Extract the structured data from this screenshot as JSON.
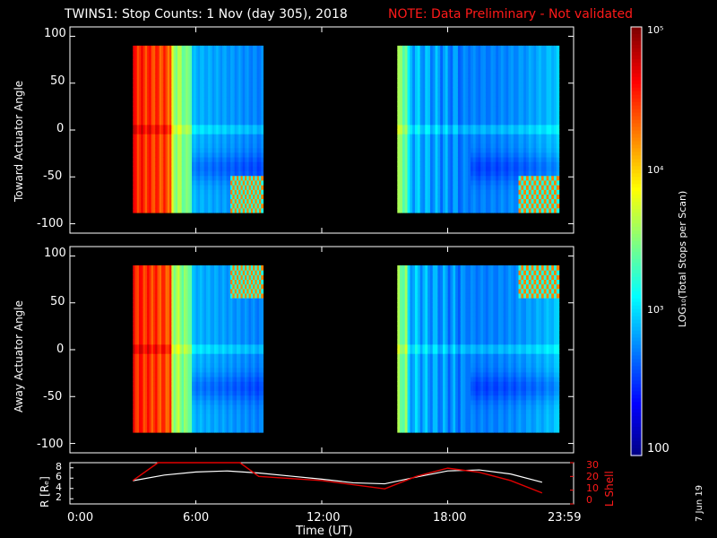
{
  "title_main": "TWINS1: Stop Counts:  1 Nov (day 305), 2018",
  "title_note": "NOTE: Data Preliminary - Not validated",
  "panel1_ylabel": "Toward Actuator Angle",
  "panel2_ylabel": "Away Actuator Angle",
  "panel3_ylabel": "R [Rₑ]",
  "panel3_ylabel2": "L Shell",
  "x_label": "Time (UT)",
  "colorbar_label": "LOG₁₀(Total Stops per Scan)",
  "colorbar_ticks": [
    "10⁵",
    "10⁴",
    "10³",
    "100"
  ],
  "date_stamp": "7 Jun 19",
  "colors": {
    "background": "#000000",
    "note": "#ff1a1a",
    "r_line": "#ffffff",
    "l_line": "#e00000"
  },
  "chart_data": [
    {
      "type": "heatmap",
      "title": "TWINS1: Stop Counts:  1 Nov (day 305), 2018",
      "ylabel": "Toward Actuator Angle",
      "xlim_hours": [
        0,
        24
      ],
      "ylim": [
        -110,
        110
      ],
      "yticks": [
        "100",
        "50",
        "0",
        "-50",
        "-100"
      ],
      "data_intervals_hours": [
        [
          3,
          9.2
        ],
        [
          15.6,
          23.3
        ]
      ],
      "angle_range": [
        -88,
        90
      ],
      "color_scale": "log10",
      "zlim": [
        100,
        100000
      ]
    },
    {
      "type": "heatmap",
      "ylabel": "Away Actuator Angle",
      "xlim_hours": [
        0,
        24
      ],
      "ylim": [
        -110,
        110
      ],
      "yticks": [
        "100",
        "50",
        "0",
        "-50",
        "-100"
      ],
      "data_intervals_hours": [
        [
          3,
          9.2
        ],
        [
          15.6,
          23.3
        ]
      ],
      "angle_range": [
        -88,
        90
      ],
      "color_scale": "log10",
      "zlim": [
        100,
        100000
      ]
    },
    {
      "type": "line",
      "xlabel": "Time (UT)",
      "xticks": [
        "0:00",
        "6:00",
        "12:00",
        "18:00",
        "23:59"
      ],
      "xlim_hours": [
        0,
        24
      ],
      "ylabel_left": "R [Rₑ]",
      "ylim_left": [
        1,
        9
      ],
      "yticks_left": [
        "8",
        "6",
        "4",
        "2"
      ],
      "ylabel_right": "L Shell",
      "ylim_right": [
        0,
        30
      ],
      "yticks_right": [
        "30",
        "20",
        "10",
        "0"
      ],
      "series": [
        {
          "name": "R [Rₑ]",
          "x": [
            3,
            4.5,
            6,
            7.5,
            9,
            10.5,
            12,
            13.5,
            15,
            16.5,
            18,
            19.5,
            21,
            22.5
          ],
          "values": [
            5.5,
            6.6,
            7.2,
            7.4,
            7.0,
            6.4,
            5.8,
            5.1,
            4.9,
            6.2,
            7.4,
            7.6,
            6.8,
            5.2
          ]
        },
        {
          "name": "L Shell",
          "x": [
            3,
            4.2,
            8.1,
            9,
            12,
            15,
            16.5,
            18,
            19.5,
            21,
            22.5
          ],
          "values": [
            17,
            30,
            30,
            20,
            17,
            11,
            20,
            26,
            23,
            17,
            8
          ]
        }
      ]
    }
  ]
}
